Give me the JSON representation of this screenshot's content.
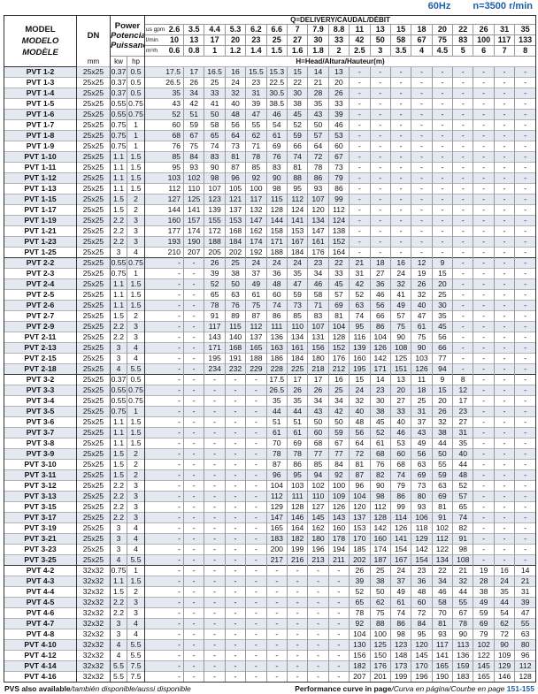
{
  "header": {
    "frequency": "60Hz",
    "speed": "n=3500 r/min",
    "model_labels": [
      "MODEL",
      "MODELO",
      "MODÈLE"
    ],
    "dn_label": "DN",
    "dn_unit": "mm",
    "power_labels": [
      "Power",
      "Potencia",
      "Puissance"
    ],
    "kw_label": "kw",
    "hp_label": "hp",
    "q_label": "Q=DELIVERY/CAUDAL/DÉBIT",
    "h_label": "H=Head/Altura/Hauteur(m)",
    "gpm_unit": "us gpm",
    "lmin_unit": "l/min",
    "m3h_unit": "m³/h",
    "gpm": [
      "2.6",
      "3.5",
      "4.4",
      "5.3",
      "6.2",
      "6.6",
      "7",
      "7.9",
      "8.8",
      "11",
      "13",
      "15",
      "18",
      "20",
      "22",
      "26",
      "31",
      "35"
    ],
    "lmin": [
      "10",
      "13",
      "17",
      "20",
      "23",
      "25",
      "27",
      "30",
      "33",
      "42",
      "50",
      "58",
      "67",
      "75",
      "83",
      "100",
      "117",
      "133"
    ],
    "m3h": [
      "0.6",
      "0.8",
      "1",
      "1.2",
      "1.4",
      "1.5",
      "1.6",
      "1.8",
      "2",
      "2.5",
      "3",
      "3.5",
      "4",
      "4.5",
      "5",
      "6",
      "7",
      "8"
    ]
  },
  "colors": {
    "accent": "#1f5fa6",
    "row_shade": "#e3e8f1"
  },
  "rows": [
    {
      "model": "PVT 1-2",
      "dn": "25x25",
      "kw": "0.37",
      "hp": "0.5",
      "h": "17.5 17 16.5 16 15.5 15.3 15 14 13 - - - - - - - - -"
    },
    {
      "model": "PVT 1-3",
      "dn": "25x25",
      "kw": "0.37",
      "hp": "0.5",
      "h": "26.5 26 25 24 23 22.5 22 21 20 - - - - - - - - -"
    },
    {
      "model": "PVT 1-4",
      "dn": "25x25",
      "kw": "0.37",
      "hp": "0.5",
      "h": "35 34 33 32 31 30.5 30 28 26 - - - - - - - - -"
    },
    {
      "model": "PVT 1-5",
      "dn": "25x25",
      "kw": "0.55",
      "hp": "0.75",
      "h": "43 42 41 40 39 38.5 38 35 33 - - - - - - - - -"
    },
    {
      "model": "PVT 1-6",
      "dn": "25x25",
      "kw": "0.55",
      "hp": "0.75",
      "h": "52 51 50 48 47 46 45 43 39 - - - - - - - - -"
    },
    {
      "model": "PVT 1-7",
      "dn": "25x25",
      "kw": "0.75",
      "hp": "1",
      "h": "60 59 58 56 55 54 52 50 46 - - - - - - - - -"
    },
    {
      "model": "PVT 1-8",
      "dn": "25x25",
      "kw": "0.75",
      "hp": "1",
      "h": "68 67 65 64 62 61 59 57 53 - - - - - - - - -"
    },
    {
      "model": "PVT 1-9",
      "dn": "25x25",
      "kw": "0.75",
      "hp": "1",
      "h": "76 75 74 73 71 69 66 64 60 - - - - - - - - -"
    },
    {
      "model": "PVT 1-10",
      "dn": "25x25",
      "kw": "1.1",
      "hp": "1.5",
      "h": "85 84 83 81 78 76 74 72 67 - - - - - - - - -"
    },
    {
      "model": "PVT 1-11",
      "dn": "25x25",
      "kw": "1.1",
      "hp": "1.5",
      "h": "95 93 90 87 85 83 81 78 73 - - - - - - - - -"
    },
    {
      "model": "PVT 1-12",
      "dn": "25x25",
      "kw": "1.1",
      "hp": "1.5",
      "h": "103 102 98 96 92 90 88 86 79 - - - - - - - - -"
    },
    {
      "model": "PVT 1-13",
      "dn": "25x25",
      "kw": "1.1",
      "hp": "1.5",
      "h": "112 110 107 105 100 98 95 93 86 - - - - - - - - -"
    },
    {
      "model": "PVT 1-15",
      "dn": "25x25",
      "kw": "1.5",
      "hp": "2",
      "h": "127 125 123 121 117 115 112 107 99 - - - - - - - - -"
    },
    {
      "model": "PVT 1-17",
      "dn": "25x25",
      "kw": "1.5",
      "hp": "2",
      "h": "144 141 139 137 132 128 124 120 112 - - - - - - - - -"
    },
    {
      "model": "PVT 1-19",
      "dn": "25x25",
      "kw": "2.2",
      "hp": "3",
      "h": "160 157 155 153 147 144 141 134 124 - - - - - - - - -"
    },
    {
      "model": "PVT 1-21",
      "dn": "25x25",
      "kw": "2.2",
      "hp": "3",
      "h": "177 174 172 168 162 158 153 147 138 - - - - - - - - -"
    },
    {
      "model": "PVT 1-23",
      "dn": "25x25",
      "kw": "2.2",
      "hp": "3",
      "h": "193 190 188 184 174 171 167 161 152 - - - - - - - - -"
    },
    {
      "model": "PVT 1-25",
      "dn": "25x25",
      "kw": "3",
      "hp": "4",
      "h": "210 207 205 202 192 188 184 176 164 - - - - - - - - -"
    },
    {
      "model": "PVT 2-2",
      "dn": "25x25",
      "kw": "0.55",
      "hp": "0.75",
      "h": "- - 26 25 24 24 24 23 22 21 18 16 12 9 - - - -"
    },
    {
      "model": "PVT 2-3",
      "dn": "25x25",
      "kw": "0.75",
      "hp": "1",
      "h": "- - 39 38 37 36 35 34 33 31 27 24 19 15 - - - -"
    },
    {
      "model": "PVT 2-4",
      "dn": "25x25",
      "kw": "1.1",
      "hp": "1.5",
      "h": "- - 52 50 49 48 47 46 45 42 36 32 26 20 - - - -"
    },
    {
      "model": "PVT 2-5",
      "dn": "25x25",
      "kw": "1.1",
      "hp": "1.5",
      "h": "- - 65 63 61 60 59 58 57 52 46 41 32 25 - - - -"
    },
    {
      "model": "PVT 2-6",
      "dn": "25x25",
      "kw": "1.1",
      "hp": "1.5",
      "h": "- - 78 76 75 74 73 71 69 63 56 49 40 30 - - - -"
    },
    {
      "model": "PVT 2-7",
      "dn": "25x25",
      "kw": "1.5",
      "hp": "2",
      "h": "- - 91 89 87 86 85 83 81 74 66 57 47 35 - - - -"
    },
    {
      "model": "PVT 2-9",
      "dn": "25x25",
      "kw": "2.2",
      "hp": "3",
      "h": "- - 117 115 112 111 110 107 104 95 86 75 61 45 - - - -"
    },
    {
      "model": "PVT 2-11",
      "dn": "25x25",
      "kw": "2.2",
      "hp": "3",
      "h": "- - 143 140 137 136 134 131 128 116 104 90 75 56 - - - -"
    },
    {
      "model": "PVT 2-13",
      "dn": "25x25",
      "kw": "3",
      "hp": "4",
      "h": "- - 171 168 165 163 161 156 152 139 126 108 90 66 - - - -"
    },
    {
      "model": "PVT 2-15",
      "dn": "25x25",
      "kw": "3",
      "hp": "4",
      "h": "- - 195 191 188 186 184 180 176 160 142 125 103 77 - - - -"
    },
    {
      "model": "PVT 2-18",
      "dn": "25x25",
      "kw": "4",
      "hp": "5.5",
      "h": "- - 234 232 229 228 225 218 212 195 171 151 126 94 - - - -"
    },
    {
      "model": "PVT 3-2",
      "dn": "25x25",
      "kw": "0.37",
      "hp": "0.5",
      "h": "- - - - - 17.5 17 17 16 15 14 13 11 9 8 - - -"
    },
    {
      "model": "PVT 3-3",
      "dn": "25x25",
      "kw": "0.55",
      "hp": "0.75",
      "h": "- - - - - 26.5 26 26 25 24 23 20 18 15 12 - - -"
    },
    {
      "model": "PVT 3-4",
      "dn": "25x25",
      "kw": "0.55",
      "hp": "0.75",
      "h": "- - - - - 35 35 34 34 32 30 27 25 20 17 - - -"
    },
    {
      "model": "PVT 3-5",
      "dn": "25x25",
      "kw": "0.75",
      "hp": "1",
      "h": "- - - - - 44 44 43 42 40 38 33 31 26 23 - - -"
    },
    {
      "model": "PVT 3-6",
      "dn": "25x25",
      "kw": "1.1",
      "hp": "1.5",
      "h": "- - - - - 51 51 50 50 48 45 40 37 32 27 - - -"
    },
    {
      "model": "PVT 3-7",
      "dn": "25x25",
      "kw": "1.1",
      "hp": "1.5",
      "h": "- - - - - 61 61 60 59 56 52 46 43 38 31 - - -"
    },
    {
      "model": "PVT 3-8",
      "dn": "25x25",
      "kw": "1.1",
      "hp": "1.5",
      "h": "- - - - - 70 69 68 67 64 61 53 49 44 35 - - -"
    },
    {
      "model": "PVT 3-9",
      "dn": "25x25",
      "kw": "1.5",
      "hp": "2",
      "h": "- - - - - 78 78 77 77 72 68 60 56 50 40 - - -"
    },
    {
      "model": "PVT 3-10",
      "dn": "25x25",
      "kw": "1.5",
      "hp": "2",
      "h": "- - - - - 87 86 85 84 81 76 68 63 55 44 - - -"
    },
    {
      "model": "PVT 3-11",
      "dn": "25x25",
      "kw": "1.5",
      "hp": "2",
      "h": "- - - - - 96 95 94 92 87 82 74 69 59 48 - - -"
    },
    {
      "model": "PVT 3-12",
      "dn": "25x25",
      "kw": "2.2",
      "hp": "3",
      "h": "- - - - - 104 103 102 100 96 90 79 73 63 52 - - -"
    },
    {
      "model": "PVT 3-13",
      "dn": "25x25",
      "kw": "2.2",
      "hp": "3",
      "h": "- - - - - 112 111 110 109 104 98 86 80 69 57 - - -"
    },
    {
      "model": "PVT 3-15",
      "dn": "25x25",
      "kw": "2.2",
      "hp": "3",
      "h": "- - - - - 129 128 127 126 120 112 99 93 81 65 - - -"
    },
    {
      "model": "PVT 3-17",
      "dn": "25x25",
      "kw": "2.2",
      "hp": "3",
      "h": "- - - - - 147 146 145 143 137 128 114 106 91 74 - - -"
    },
    {
      "model": "PVT 3-19",
      "dn": "25x25",
      "kw": "3",
      "hp": "4",
      "h": "- - - - - 165 164 162 160 153 142 126 118 102 82 - - -"
    },
    {
      "model": "PVT 3-21",
      "dn": "25x25",
      "kw": "3",
      "hp": "4",
      "h": "- - - - - 183 182 180 178 170 160 141 129 112 91 - - -"
    },
    {
      "model": "PVT 3-23",
      "dn": "25x25",
      "kw": "3",
      "hp": "4",
      "h": "- - - - - 200 199 196 194 185 174 154 142 122 98 - - -"
    },
    {
      "model": "PVT 3-25",
      "dn": "25x25",
      "kw": "4",
      "hp": "5.5",
      "h": "- - - - - 217 216 213 211 202 187 167 154 134 108 - - -"
    },
    {
      "model": "PVT 4-2",
      "dn": "32x32",
      "kw": "0.75",
      "hp": "1",
      "h": "- - - - - - - - - 26 25 24 23 22 21 19 16 14"
    },
    {
      "model": "PVT 4-3",
      "dn": "32x32",
      "kw": "1.1",
      "hp": "1.5",
      "h": "- - - - - - - - - 39 38 37 36 34 32 28 24 21"
    },
    {
      "model": "PVT 4-4",
      "dn": "32x32",
      "kw": "1.5",
      "hp": "2",
      "h": "- - - - - - - - - 52 50 49 48 46 44 38 35 31"
    },
    {
      "model": "PVT 4-5",
      "dn": "32x32",
      "kw": "2.2",
      "hp": "3",
      "h": "- - - - - - - - - 65 62 61 60 58 55 49 44 39"
    },
    {
      "model": "PVT 4-6",
      "dn": "32x32",
      "kw": "2.2",
      "hp": "3",
      "h": "- - - - - - - - - 78 75 74 72 70 67 59 54 47"
    },
    {
      "model": "PVT 4-7",
      "dn": "32x32",
      "kw": "3",
      "hp": "4",
      "h": "- - - - - - - - - 92 88 86 84 81 78 69 62 55"
    },
    {
      "model": "PVT 4-8",
      "dn": "32x32",
      "kw": "3",
      "hp": "4",
      "h": "- - - - - - - - - 104 100 98 95 93 90 79 72 63"
    },
    {
      "model": "PVT 4-10",
      "dn": "32x32",
      "kw": "4",
      "hp": "5.5",
      "h": "- - - - - - - - - 130 125 123 120 117 113 102 90 80"
    },
    {
      "model": "PVT 4-12",
      "dn": "32x32",
      "kw": "4",
      "hp": "5.5",
      "h": "- - - - - - - - - 156 150 148 145 141 136 122 109 96"
    },
    {
      "model": "PVT 4-14",
      "dn": "32x32",
      "kw": "5.5",
      "hp": "7.5",
      "h": "- - - - - - - - - 182 176 173 170 165 159 145 129 112"
    },
    {
      "model": "PVT 4-16",
      "dn": "32x32",
      "kw": "5.5",
      "hp": "7.5",
      "h": "- - - - - - - - - 207 201 199 196 190 183 165 146 128"
    }
  ],
  "footer": {
    "left_bold": "PVS also available",
    "left_italic": "/también disponible/aussi disponible",
    "right_bold": "Performance curve in page",
    "right_italic": "/Curva en página/Courbe en page",
    "pages": "151-155"
  }
}
